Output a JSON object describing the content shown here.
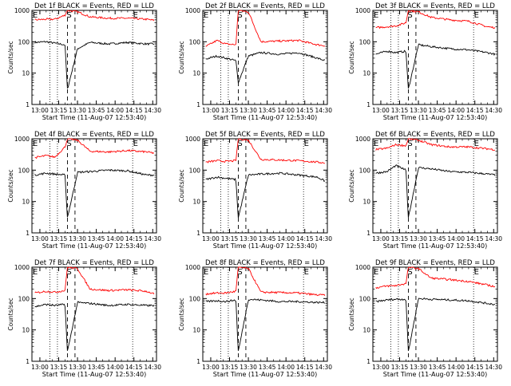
{
  "style": {
    "events_color": "#000000",
    "lld_color": "#ff0000",
    "axis_color": "#000000",
    "background": "#ffffff"
  },
  "shared": {
    "xlabel": "Start Time (11-Aug-07 12:53:40)",
    "ylabel": "Counts/sec",
    "x_ticks": [
      "13:00",
      "13:15",
      "13:30",
      "13:45",
      "14:00",
      "14:15",
      "14:30"
    ],
    "y_ticks": [
      "1",
      "10",
      "100",
      "1000"
    ],
    "marker_labels": {
      "E": "E",
      "S": "S"
    }
  },
  "chart_data": [
    {
      "type": "line",
      "title": "Det 1f BLACK = Events, RED = LLD",
      "xlim": [
        "12:53:40",
        "14:33"
      ],
      "ylim": [
        1,
        1000
      ],
      "y_scale": "log",
      "series": [
        {
          "values": "Events",
          "x": [
            "12:56",
            "13:05",
            "13:12",
            "13:20",
            "13:22",
            "13:30",
            "13:40",
            "13:55",
            "14:10",
            "14:25",
            "14:31"
          ],
          "y": [
            95,
            100,
            90,
            80,
            3,
            60,
            95,
            85,
            95,
            85,
            85
          ]
        },
        {
          "values": "LLD",
          "x": [
            "12:56",
            "13:05",
            "13:12",
            "13:20",
            "13:22",
            "13:30",
            "13:40",
            "13:55",
            "14:10",
            "14:25",
            "14:31"
          ],
          "y": [
            500,
            520,
            520,
            700,
            1000,
            900,
            620,
            560,
            560,
            520,
            480
          ]
        }
      ],
      "vertical_markers": {
        "dotted": [
          "13:08",
          "13:14",
          "14:14"
        ],
        "dashed": [
          "13:22",
          "13:28"
        ],
        "labels_at": {
          "E": [
            "12:54",
            "14:14"
          ],
          "S": [
            "13:21"
          ]
        }
      }
    },
    {
      "type": "line",
      "title": "Det 2f BLACK = Events, RED = LLD",
      "xlim": [
        "12:53:40",
        "14:33"
      ],
      "ylim": [
        1,
        1000
      ],
      "y_scale": "log",
      "series": [
        {
          "values": "Events",
          "x": [
            "12:56",
            "13:05",
            "13:12",
            "13:20",
            "13:22",
            "13:30",
            "13:40",
            "13:55",
            "14:10",
            "14:25",
            "14:31"
          ],
          "y": [
            28,
            35,
            30,
            25,
            5,
            35,
            45,
            40,
            45,
            30,
            25
          ]
        },
        {
          "values": "LLD",
          "x": [
            "12:56",
            "13:05",
            "13:12",
            "13:20",
            "13:22",
            "13:30",
            "13:40",
            "13:55",
            "14:10",
            "14:25",
            "14:31"
          ],
          "y": [
            70,
            110,
            85,
            80,
            1000,
            900,
            100,
            105,
            110,
            80,
            75
          ]
        }
      ],
      "vertical_markers": {
        "dotted": [
          "13:08",
          "13:14",
          "14:14"
        ],
        "dashed": [
          "13:22",
          "13:28"
        ],
        "labels_at": {
          "E": [
            "12:54",
            "14:14"
          ],
          "S": [
            "13:21"
          ]
        }
      }
    },
    {
      "type": "line",
      "title": "Det 3f BLACK = Events, RED = LLD",
      "xlim": [
        "12:53:40",
        "14:33"
      ],
      "ylim": [
        1,
        1000
      ],
      "y_scale": "log",
      "series": [
        {
          "values": "Events",
          "x": [
            "12:56",
            "13:05",
            "13:12",
            "13:20",
            "13:22",
            "13:30",
            "13:40",
            "13:55",
            "14:10",
            "14:25",
            "14:31"
          ],
          "y": [
            40,
            50,
            45,
            50,
            3,
            80,
            70,
            60,
            55,
            45,
            40
          ]
        },
        {
          "values": "LLD",
          "x": [
            "12:56",
            "13:05",
            "13:12",
            "13:20",
            "13:22",
            "13:30",
            "13:40",
            "13:55",
            "14:10",
            "14:25",
            "14:31"
          ],
          "y": [
            280,
            300,
            320,
            400,
            1000,
            900,
            600,
            500,
            450,
            300,
            280
          ]
        }
      ],
      "vertical_markers": {
        "dotted": [
          "13:08",
          "13:14",
          "14:14"
        ],
        "dashed": [
          "13:22",
          "13:28"
        ],
        "labels_at": {
          "E": [
            "12:54",
            "14:14"
          ],
          "S": [
            "13:21"
          ]
        }
      }
    },
    {
      "type": "line",
      "title": "Det 4f BLACK = Events, RED = LLD",
      "xlim": [
        "12:53:40",
        "14:33"
      ],
      "ylim": [
        1,
        1000
      ],
      "y_scale": "log",
      "series": [
        {
          "values": "Events",
          "x": [
            "12:56",
            "13:05",
            "13:12",
            "13:20",
            "13:22",
            "13:30",
            "13:40",
            "13:55",
            "14:10",
            "14:25",
            "14:31"
          ],
          "y": [
            70,
            80,
            75,
            70,
            3,
            85,
            90,
            100,
            95,
            70,
            70
          ]
        },
        {
          "values": "LLD",
          "x": [
            "12:56",
            "13:05",
            "13:12",
            "13:20",
            "13:22",
            "13:30",
            "13:40",
            "13:55",
            "14:10",
            "14:25",
            "14:31"
          ],
          "y": [
            250,
            290,
            260,
            550,
            1000,
            900,
            400,
            380,
            420,
            380,
            350
          ]
        }
      ],
      "vertical_markers": {
        "dotted": [
          "13:08",
          "13:14",
          "14:14"
        ],
        "dashed": [
          "13:22",
          "13:28"
        ],
        "labels_at": {
          "E": [
            "12:54",
            "14:14"
          ],
          "S": [
            "13:21"
          ]
        }
      }
    },
    {
      "type": "line",
      "title": "Det 5f BLACK = Events, RED = LLD",
      "xlim": [
        "12:53:40",
        "14:33"
      ],
      "ylim": [
        1,
        1000
      ],
      "y_scale": "log",
      "series": [
        {
          "values": "Events",
          "x": [
            "12:56",
            "13:05",
            "13:12",
            "13:20",
            "13:22",
            "13:30",
            "13:40",
            "13:55",
            "14:10",
            "14:25",
            "14:31"
          ],
          "y": [
            50,
            60,
            55,
            50,
            3,
            70,
            75,
            80,
            70,
            60,
            45
          ]
        },
        {
          "values": "LLD",
          "x": [
            "12:56",
            "13:05",
            "13:12",
            "13:20",
            "13:22",
            "13:30",
            "13:40",
            "13:55",
            "14:10",
            "14:25",
            "14:31"
          ],
          "y": [
            180,
            200,
            190,
            200,
            1000,
            900,
            220,
            210,
            200,
            180,
            170
          ]
        }
      ],
      "vertical_markers": {
        "dotted": [
          "13:08",
          "13:14",
          "14:14"
        ],
        "dashed": [
          "13:22",
          "13:28"
        ],
        "labels_at": {
          "E": [
            "12:54",
            "14:14"
          ],
          "S": [
            "13:21"
          ]
        }
      }
    },
    {
      "type": "line",
      "title": "Det 6f BLACK = Events, RED = LLD",
      "xlim": [
        "12:53:40",
        "14:33"
      ],
      "ylim": [
        1,
        1000
      ],
      "y_scale": "log",
      "series": [
        {
          "values": "Events",
          "x": [
            "12:56",
            "13:05",
            "13:12",
            "13:20",
            "13:22",
            "13:30",
            "13:40",
            "13:55",
            "14:10",
            "14:25",
            "14:31"
          ],
          "y": [
            80,
            90,
            140,
            100,
            3,
            120,
            110,
            90,
            85,
            75,
            70
          ]
        },
        {
          "values": "LLD",
          "x": [
            "12:56",
            "13:05",
            "13:12",
            "13:20",
            "13:22",
            "13:30",
            "13:40",
            "13:55",
            "14:10",
            "14:25",
            "14:31"
          ],
          "y": [
            450,
            500,
            650,
            600,
            1000,
            900,
            650,
            550,
            550,
            480,
            450
          ]
        }
      ],
      "vertical_markers": {
        "dotted": [
          "13:08",
          "13:14",
          "14:14"
        ],
        "dashed": [
          "13:22",
          "13:28"
        ],
        "labels_at": {
          "E": [
            "12:54",
            "14:14"
          ],
          "S": [
            "13:21"
          ]
        }
      }
    },
    {
      "type": "line",
      "title": "Det 7f BLACK = Events, RED = LLD",
      "xlim": [
        "12:53:40",
        "14:33"
      ],
      "ylim": [
        1,
        1000
      ],
      "y_scale": "log",
      "series": [
        {
          "values": "Events",
          "x": [
            "12:56",
            "13:05",
            "13:12",
            "13:20",
            "13:22",
            "13:30",
            "13:40",
            "13:55",
            "14:10",
            "14:25",
            "14:31"
          ],
          "y": [
            55,
            65,
            60,
            65,
            2,
            75,
            70,
            60,
            65,
            60,
            60
          ]
        },
        {
          "values": "LLD",
          "x": [
            "12:56",
            "13:05",
            "13:12",
            "13:20",
            "13:22",
            "13:30",
            "13:40",
            "13:55",
            "14:10",
            "14:25",
            "14:31"
          ],
          "y": [
            150,
            170,
            160,
            180,
            1000,
            900,
            200,
            180,
            190,
            170,
            140
          ]
        }
      ],
      "vertical_markers": {
        "dotted": [
          "13:08",
          "13:14",
          "14:14"
        ],
        "dashed": [
          "13:22",
          "13:28"
        ],
        "labels_at": {
          "E": [
            "12:54",
            "14:14"
          ],
          "S": [
            "13:21"
          ]
        }
      }
    },
    {
      "type": "line",
      "title": "Det 8f BLACK = Events, RED = LLD",
      "xlim": [
        "12:53:40",
        "14:33"
      ],
      "ylim": [
        1,
        1000
      ],
      "y_scale": "log",
      "series": [
        {
          "values": "Events",
          "x": [
            "12:56",
            "13:05",
            "13:12",
            "13:20",
            "13:22",
            "13:30",
            "13:40",
            "13:55",
            "14:10",
            "14:25",
            "14:31"
          ],
          "y": [
            80,
            85,
            80,
            90,
            2,
            95,
            90,
            80,
            80,
            75,
            75
          ]
        },
        {
          "values": "LLD",
          "x": [
            "12:56",
            "13:05",
            "13:12",
            "13:20",
            "13:22",
            "13:30",
            "13:40",
            "13:55",
            "14:10",
            "14:25",
            "14:31"
          ],
          "y": [
            140,
            150,
            150,
            170,
            1000,
            900,
            160,
            155,
            150,
            130,
            130
          ]
        }
      ],
      "vertical_markers": {
        "dotted": [
          "13:08",
          "13:14",
          "14:14"
        ],
        "dashed": [
          "13:22",
          "13:28"
        ],
        "labels_at": {
          "E": [
            "12:54",
            "14:14"
          ],
          "S": [
            "13:21"
          ]
        }
      }
    },
    {
      "type": "line",
      "title": "Det 9f BLACK = Events, RED = LLD",
      "xlim": [
        "12:53:40",
        "14:33"
      ],
      "ylim": [
        1,
        1000
      ],
      "y_scale": "log",
      "series": [
        {
          "values": "Events",
          "x": [
            "12:56",
            "13:05",
            "13:12",
            "13:20",
            "13:22",
            "13:30",
            "13:40",
            "13:55",
            "14:10",
            "14:25",
            "14:31"
          ],
          "y": [
            80,
            90,
            95,
            95,
            2,
            100,
            95,
            90,
            85,
            70,
            65
          ]
        },
        {
          "values": "LLD",
          "x": [
            "12:56",
            "13:05",
            "13:12",
            "13:20",
            "13:22",
            "13:30",
            "13:40",
            "13:55",
            "14:10",
            "14:25",
            "14:31"
          ],
          "y": [
            220,
            250,
            260,
            300,
            1000,
            900,
            450,
            400,
            350,
            270,
            240
          ]
        }
      ],
      "vertical_markers": {
        "dotted": [
          "13:08",
          "13:14",
          "14:14"
        ],
        "dashed": [
          "13:22",
          "13:28"
        ],
        "labels_at": {
          "E": [
            "12:54",
            "14:14"
          ],
          "S": [
            "13:21"
          ]
        }
      }
    }
  ]
}
